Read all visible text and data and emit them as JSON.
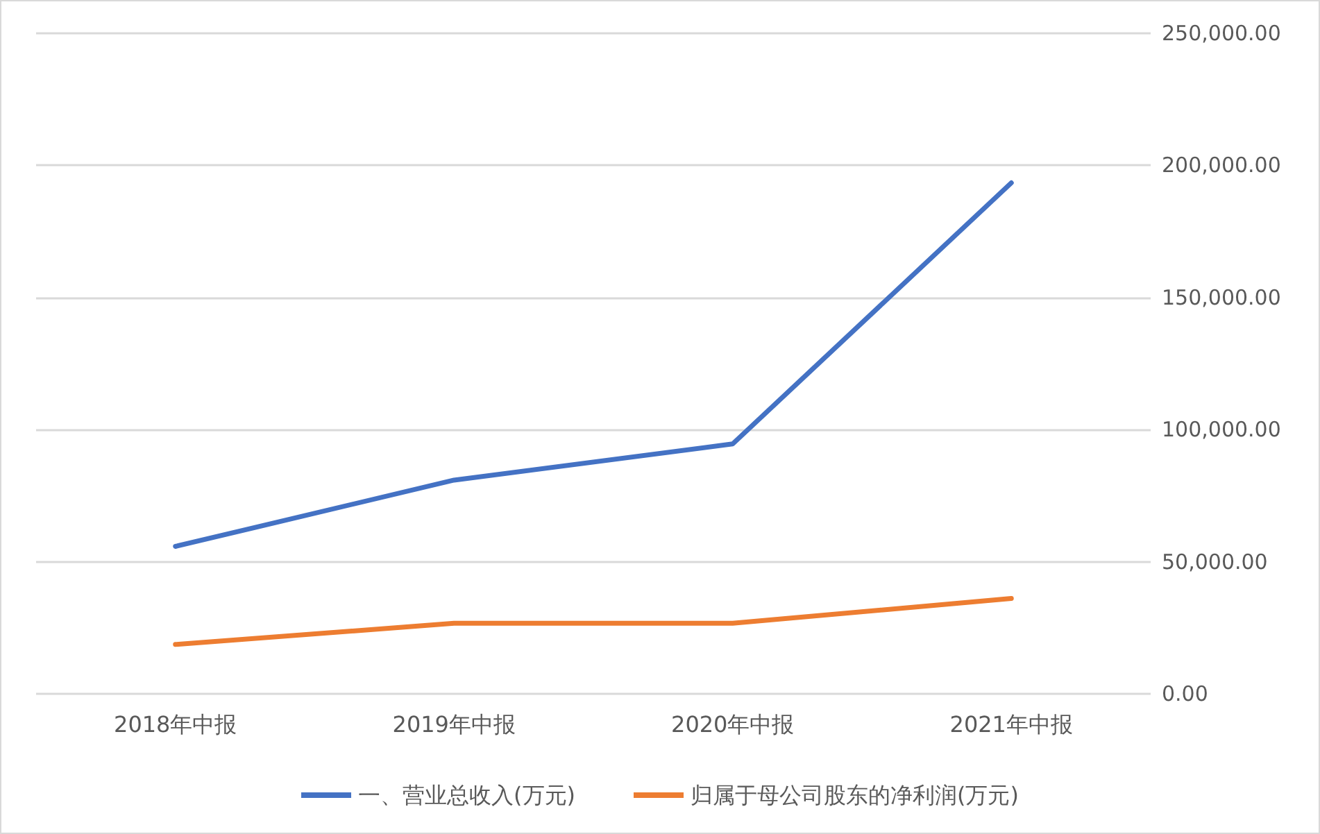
{
  "chart_data": {
    "type": "line",
    "categories": [
      "2018年中报",
      "2019年中报",
      "2020年中报",
      "2021年中报"
    ],
    "series": [
      {
        "name": "一、营业总收入(万元)",
        "color": "#4472c4",
        "values": [
          55800,
          80900,
          94600,
          193400
        ]
      },
      {
        "name": "归属于母公司股东的净利润(万元)",
        "color": "#ed7d31",
        "values": [
          18700,
          26700,
          26700,
          36100
        ]
      }
    ],
    "ylim": [
      0,
      250000
    ],
    "yticks": [
      {
        "value": 0,
        "label": "0.00"
      },
      {
        "value": 50000,
        "label": "50,000.00"
      },
      {
        "value": 100000,
        "label": "100,000.00"
      },
      {
        "value": 150000,
        "label": "150,000.00"
      },
      {
        "value": 200000,
        "label": "200,000.00"
      },
      {
        "value": 250000,
        "label": "250,000.00"
      }
    ],
    "grid": "y",
    "legend": "bottom",
    "marker": "none",
    "line_style": "solid"
  }
}
